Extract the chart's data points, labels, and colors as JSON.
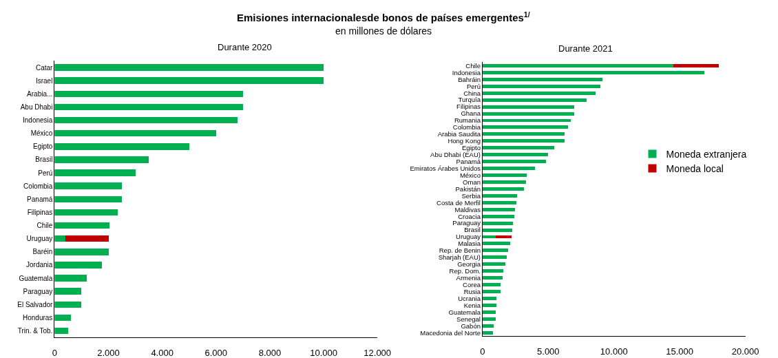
{
  "chart_data": [
    {
      "type": "bar",
      "orientation": "horizontal",
      "stacked": true,
      "title": "Durante 2020",
      "legend": false,
      "annotations": [
        "Emisiones internacionalesde bonos de países emergentes$^{1/}$",
        "en millones de dólares"
      ],
      "categories": [
        "Catar",
        "Israel",
        "Arabia...",
        "Abu Dhabi",
        "Indonesia",
        "México",
        "Egipto",
        "Brasil",
        "Perú",
        "Colombia",
        "Panamá",
        "Filipinas",
        "Chile",
        "Uruguay",
        "Baréin",
        "Jordania",
        "Guatemala",
        "Paraguay",
        "El Salvador",
        "Honduras",
        "Trin. & Tob."
      ],
      "series": [
        {
          "color": "#00b050",
          "values": [
            10000,
            10000,
            7000,
            7000,
            6800,
            6000,
            5000,
            3500,
            3000,
            2500,
            2500,
            2350,
            2050,
            400,
            2000,
            1750,
            1200,
            1000,
            1000,
            600,
            500
          ]
        },
        {
          "color": "#c00000",
          "values": [
            null,
            null,
            null,
            null,
            null,
            null,
            null,
            null,
            null,
            null,
            null,
            null,
            null,
            1600,
            null,
            null,
            null,
            null,
            null,
            null,
            null
          ]
        }
      ],
      "xlim": [
        0,
        12000
      ],
      "xticks": [
        0,
        {
          "value": 2000,
          "label": "2.000"
        },
        {
          "value": 4000,
          "label": "4.000"
        },
        {
          "value": 6000,
          "label": "6.000"
        },
        {
          "value": 8000,
          "label": "8.000"
        },
        {
          "value": 10000,
          "label": "10.000"
        },
        {
          "value": 12000,
          "label": "12.000"
        }
      ]
    },
    {
      "type": "bar",
      "orientation": "horizontal",
      "stacked": true,
      "title": "Durante 2021",
      "legend": "right",
      "categories": [
        "Chile",
        "Indonesia",
        "Bahráin",
        "Perú",
        "China",
        "Turquía",
        "Filipinas",
        "Ghana",
        "Rumania",
        "Colombia",
        "Arabia Saudita",
        "Hong Kong",
        "Egipto",
        "Abu Dhabi (EAU)",
        "Panamá",
        "Emiratos Árabes Unidos",
        "México",
        "Oman",
        "Pakistán",
        "Serbia",
        "Costa de Merfil",
        "Maldivas",
        "Croacia",
        "Paraguay",
        "Brasil",
        "Uruguay",
        "Malasia",
        "Rep. de Benin",
        "Sharjah (EAU)",
        "Georgia",
        "Rep. Dom.",
        "Armenia",
        "Corea",
        "Rusia",
        "Ucrania",
        "Kenia",
        "Guatemala",
        "Senegal",
        "Gabón",
        "Macedonia del Norte"
      ],
      "series": [
        {
          "name": "Moneda extranjera",
          "color": "#00b050",
          "values": [
            14500,
            16900,
            9100,
            8950,
            8600,
            7900,
            7000,
            7000,
            6700,
            6500,
            6250,
            6250,
            5450,
            5000,
            4850,
            4000,
            3350,
            3300,
            3150,
            2650,
            2600,
            2450,
            2400,
            2300,
            2250,
            1000,
            2100,
            1950,
            1850,
            1750,
            1600,
            1500,
            1350,
            1350,
            1050,
            1050,
            1000,
            1000,
            850,
            800
          ]
        },
        {
          "name": "Moneda local",
          "color": "#c00000",
          "values": [
            3500,
            null,
            null,
            null,
            null,
            null,
            null,
            null,
            null,
            null,
            null,
            null,
            null,
            null,
            null,
            null,
            null,
            null,
            null,
            null,
            null,
            null,
            null,
            null,
            null,
            1200,
            null,
            null,
            null,
            null,
            null,
            null,
            null,
            null,
            null,
            null,
            null,
            null,
            null,
            null
          ]
        }
      ],
      "xlim": [
        0,
        20000
      ],
      "xticks": [
        0,
        {
          "value": 5000,
          "label": "5.000"
        },
        {
          "value": 10000,
          "label": "10.000"
        },
        {
          "value": 15000,
          "label": "15.000"
        },
        {
          "value": 20000,
          "label": "20.000"
        }
      ]
    }
  ]
}
